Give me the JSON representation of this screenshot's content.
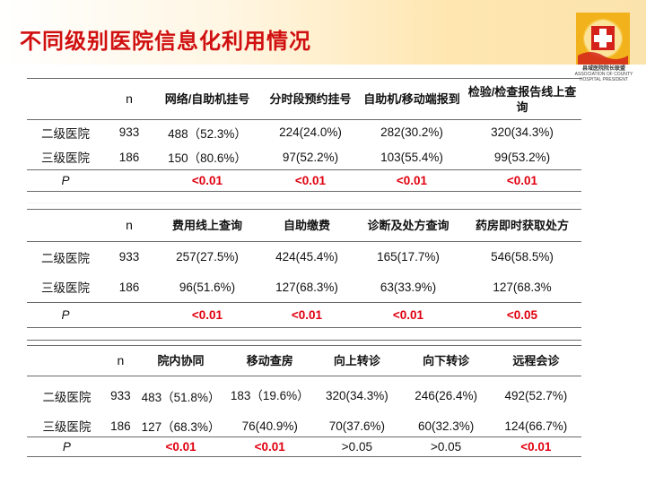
{
  "title": "不同级别医院信息化利用情况",
  "logo": {
    "name_cn": "县域医院院长联盟",
    "name_en_1": "ASSOCIATION OF COUNTY",
    "name_en_2": "HOSPITAL PRESIDENT"
  },
  "colors": {
    "title": "#d01010",
    "significant": "#e0000f",
    "header_band": "#fbe3ad",
    "logo_red": "#d4221a"
  },
  "tables": [
    {
      "headers": [
        "",
        "n",
        "网络/自助机挂号",
        "分时段预约挂号",
        "自助机/移动端报到",
        "检验/检查报告线上查询"
      ],
      "rows": [
        [
          "二级医院",
          "933",
          "488（52.3%）",
          "224(24.0%)",
          "282(30.2%)",
          "320(34.3%)"
        ],
        [
          "三级医院",
          "186",
          "150（80.6%）",
          "97(52.2%)",
          "103(55.4%)",
          "99(53.2%)"
        ]
      ],
      "p_row": [
        "P",
        "",
        "<0.01",
        "<0.01",
        "<0.01",
        "<0.01"
      ]
    },
    {
      "headers": [
        "",
        "n",
        "费用线上查询",
        "自助缴费",
        "诊断及处方查询",
        "药房即时获取处方"
      ],
      "rows": [
        [
          "二级医院",
          "933",
          "257(27.5%)",
          "424(45.4%)",
          "165(17.7%)",
          "546(58.5%)"
        ],
        [
          "三级医院",
          "186",
          "96(51.6%)",
          "127(68.3%)",
          "63(33.9%)",
          "127(68.3%"
        ]
      ],
      "p_row": [
        "P",
        "",
        "<0.01",
        "<0.01",
        "<0.01",
        "<0.05"
      ]
    },
    {
      "headers": [
        "",
        "n",
        "院内协同",
        "移动查房",
        "向上转诊",
        "向下转诊",
        "远程会诊"
      ],
      "rows": [
        [
          "二级医院",
          "933",
          "483（51.8%）",
          "183（19.6%）",
          "320(34.3%)",
          "246(26.4%)",
          "492(52.7%)"
        ],
        [
          "三级医院",
          "186",
          "127（68.3%）",
          "76(40.9%)",
          "70(37.6%)",
          "60(32.3%)",
          "124(66.7%)"
        ]
      ],
      "p_row": [
        "P",
        "",
        "<0.01",
        "<0.01",
        ">0.05",
        ">0.05",
        "<0.01"
      ]
    }
  ]
}
